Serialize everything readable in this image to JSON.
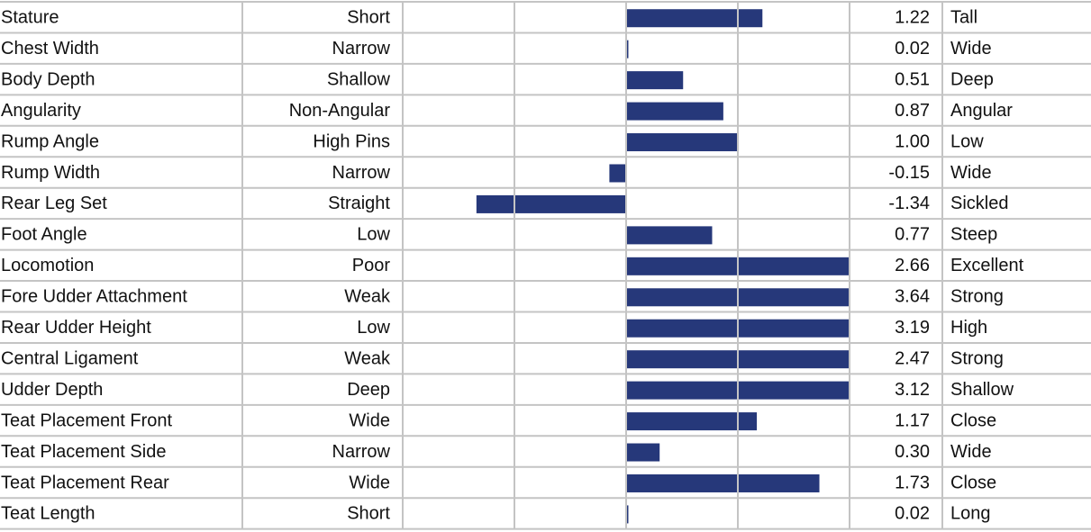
{
  "chart_data": {
    "type": "bar",
    "orientation": "horizontal",
    "categories": [
      "Stature",
      "Chest Width",
      "Body Depth",
      "Angularity",
      "Rump Angle",
      "Rump Width",
      "Rear Leg Set",
      "Foot Angle",
      "Locomotion",
      "Fore Udder Attachment",
      "Rear Udder Height",
      "Central Ligament",
      "Udder Depth",
      "Teat Placement Front",
      "Teat Placement Side",
      "Teat Placement Rear",
      "Teat Length"
    ],
    "low_labels": [
      "Short",
      "Narrow",
      "Shallow",
      "Non-Angular",
      "High Pins",
      "Narrow",
      "Straight",
      "Low",
      "Poor",
      "Weak",
      "Low",
      "Weak",
      "Deep",
      "Wide",
      "Narrow",
      "Wide",
      "Short"
    ],
    "high_labels": [
      "Tall",
      "Wide",
      "Deep",
      "Angular",
      "Low",
      "Wide",
      "Sickled",
      "Steep",
      "Excellent",
      "Strong",
      "High",
      "Strong",
      "Shallow",
      "Close",
      "Wide",
      "Close",
      "Long"
    ],
    "values": [
      1.22,
      0.02,
      0.51,
      0.87,
      1.0,
      -0.15,
      -1.34,
      0.77,
      2.66,
      3.64,
      3.19,
      2.47,
      3.12,
      1.17,
      0.3,
      1.73,
      0.02
    ],
    "value_labels": [
      "1.22",
      "0.02",
      "0.51",
      "0.87",
      "1.00",
      "-0.15",
      "-1.34",
      "0.77",
      "2.66",
      "3.64",
      "3.19",
      "2.47",
      "3.12",
      "1.17",
      "0.30",
      "1.73",
      "0.02"
    ],
    "color": "#26387a",
    "xlim": [
      -2,
      2
    ],
    "xticks": [
      -2,
      -1,
      0,
      1,
      2
    ],
    "grid": true
  }
}
